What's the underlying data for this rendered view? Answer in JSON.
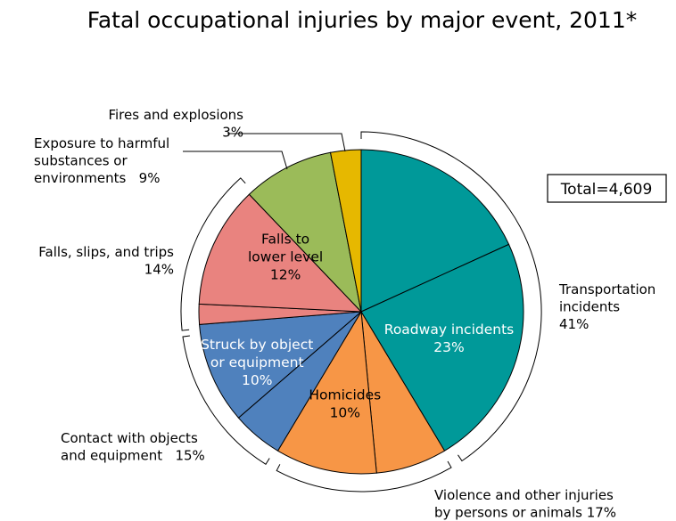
{
  "chart_data": {
    "type": "pie",
    "title": "Fatal occupational injuries by major event, 2011*",
    "total_label": "Total=4,609",
    "slices": [
      {
        "name": "Transportation incidents (other)",
        "value": 18,
        "color": "#009999"
      },
      {
        "name": "Roadway incidents",
        "value": 23,
        "color": "#009999",
        "label_lines": [
          "Roadway incidents",
          "23%"
        ],
        "label_color": "#ffffff"
      },
      {
        "name": "Violence and other injuries by persons or animals (other)",
        "value": 7,
        "color": "#F79646"
      },
      {
        "name": "Homicides",
        "value": 10,
        "color": "#F79646",
        "label_lines": [
          "Homicides",
          "10%"
        ],
        "label_color": "#000000"
      },
      {
        "name": "Contact with objects and equipment (other)",
        "value": 5,
        "color": "#4F81BD"
      },
      {
        "name": "Struck by object or equipment",
        "value": 10,
        "color": "#4F81BD",
        "label_lines": [
          "Struck by object",
          "or equipment",
          "10%"
        ],
        "label_color": "#ffffff"
      },
      {
        "name": "Falls, slips, and trips (other)",
        "value": 2,
        "color": "#E9837F"
      },
      {
        "name": "Falls to lower level",
        "value": 12,
        "color": "#E9837F",
        "label_lines": [
          "Falls to",
          "lower level",
          "12%"
        ],
        "label_color": "#000000"
      },
      {
        "name": "Exposure to harmful substances or environments",
        "value": 9,
        "color": "#9BBB59"
      },
      {
        "name": "Fires and explosions",
        "value": 3,
        "color": "#E6B800"
      }
    ],
    "categories": [
      {
        "name": "Transportation incidents",
        "lines": [
          "Transportation",
          "incidents",
          "41%"
        ],
        "value": 41
      },
      {
        "name": "Violence and other injuries by persons or animals",
        "lines": [
          "Violence and other injuries",
          "by persons or animals 17%"
        ],
        "value": 17
      },
      {
        "name": "Contact with objects and equipment",
        "lines": [
          "Contact with objects",
          "and equipment   15%"
        ],
        "value": 15
      },
      {
        "name": "Falls, slips, and trips",
        "lines": [
          "Falls, slips, and trips",
          "14%"
        ],
        "value": 14
      },
      {
        "name": "Exposure to harmful substances or environments",
        "lines": [
          "Exposure to harmful",
          "substances or",
          "environments   9%"
        ],
        "value": 9
      },
      {
        "name": "Fires and explosions",
        "lines": [
          "Fires and explosions",
          "3%"
        ],
        "value": 3
      }
    ]
  }
}
